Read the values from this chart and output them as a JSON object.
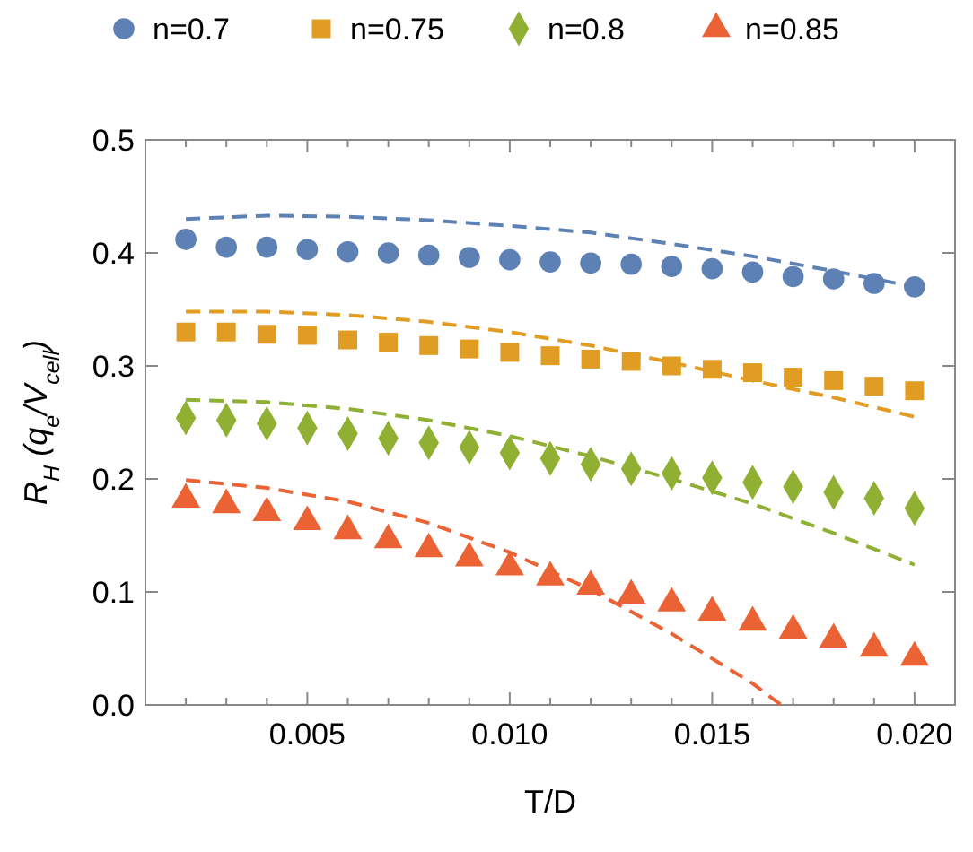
{
  "chart_data": {
    "type": "scatter",
    "xlabel": "T/D",
    "ylabel": "R$_{H}$ (q$_{e}$/V$_{cell}$)",
    "legend": "top",
    "grid": false,
    "xlim": [
      0.001,
      0.021
    ],
    "xticks": [
      {
        "value": 0.002,
        "label": null
      },
      {
        "value": 0.003,
        "label": null
      },
      {
        "value": 0.004,
        "label": null
      },
      {
        "value": 0.005,
        "label": "0.005"
      },
      {
        "value": 0.006,
        "label": null
      },
      {
        "value": 0.007,
        "label": null
      },
      {
        "value": 0.008,
        "label": null
      },
      {
        "value": 0.009,
        "label": null
      },
      {
        "value": 0.01,
        "label": "0.010"
      },
      {
        "value": 0.011,
        "label": null
      },
      {
        "value": 0.012,
        "label": null
      },
      {
        "value": 0.013,
        "label": null
      },
      {
        "value": 0.014,
        "label": null
      },
      {
        "value": 0.015,
        "label": "0.015"
      },
      {
        "value": 0.016,
        "label": null
      },
      {
        "value": 0.017,
        "label": null
      },
      {
        "value": 0.018,
        "label": null
      },
      {
        "value": 0.019,
        "label": null
      },
      {
        "value": 0.02,
        "label": "0.020"
      }
    ],
    "ylim": [
      0,
      0.5
    ],
    "yticks": [
      {
        "value": 0,
        "label": "0.0"
      },
      {
        "value": 0.1,
        "label": "0.1"
      },
      {
        "value": 0.2,
        "label": "0.2"
      },
      {
        "value": 0.3,
        "label": "0.3"
      },
      {
        "value": 0.4,
        "label": "0.4"
      },
      {
        "value": 0.5,
        "label": "0.5"
      }
    ],
    "x": [
      0.002,
      0.003,
      0.004,
      0.005,
      0.006,
      0.007,
      0.008,
      0.009,
      0.01,
      0.011,
      0.012,
      0.013,
      0.014,
      0.015,
      0.016,
      0.017,
      0.018,
      0.019,
      0.02
    ],
    "series": [
      {
        "name": "n=0.7",
        "color": "#5e81b5",
        "marker": "circle",
        "values": [
          0.412,
          0.405,
          0.405,
          0.403,
          0.401,
          0.4,
          0.398,
          0.396,
          0.394,
          0.392,
          0.391,
          0.39,
          0.388,
          0.386,
          0.383,
          0.379,
          0.377,
          0.373,
          0.37
        ]
      },
      {
        "name": "n=0.75",
        "color": "#e19c24",
        "marker": "square",
        "values": [
          0.33,
          0.33,
          0.328,
          0.327,
          0.323,
          0.321,
          0.318,
          0.315,
          0.312,
          0.309,
          0.306,
          0.304,
          0.3,
          0.297,
          0.294,
          0.29,
          0.287,
          0.282,
          0.278
        ]
      },
      {
        "name": "n=0.8",
        "color": "#8fb032",
        "marker": "diamond",
        "values": [
          0.254,
          0.252,
          0.249,
          0.245,
          0.24,
          0.236,
          0.232,
          0.228,
          0.223,
          0.218,
          0.213,
          0.209,
          0.205,
          0.201,
          0.197,
          0.193,
          0.188,
          0.183,
          0.174
        ]
      },
      {
        "name": "n=0.85",
        "color": "#eb6235",
        "marker": "triangle",
        "values": [
          0.182,
          0.177,
          0.17,
          0.162,
          0.154,
          0.146,
          0.138,
          0.13,
          0.122,
          0.113,
          0.105,
          0.097,
          0.09,
          0.082,
          0.073,
          0.066,
          0.058,
          0.05,
          0.042
        ]
      },
      {
        "type": "line",
        "line_style": "dashed",
        "marker": "none",
        "color": "#5e81b5",
        "x": [
          0.002,
          0.004,
          0.006,
          0.008,
          0.01,
          0.012,
          0.014,
          0.016,
          0.018,
          0.02
        ],
        "values": [
          0.43,
          0.433,
          0.432,
          0.429,
          0.424,
          0.418,
          0.408,
          0.397,
          0.384,
          0.37
        ]
      },
      {
        "type": "line",
        "line_style": "dashed",
        "marker": "none",
        "color": "#e19c24",
        "x": [
          0.002,
          0.004,
          0.006,
          0.008,
          0.01,
          0.012,
          0.014,
          0.016,
          0.018,
          0.02
        ],
        "values": [
          0.348,
          0.348,
          0.345,
          0.339,
          0.33,
          0.318,
          0.303,
          0.287,
          0.272,
          0.255
        ]
      },
      {
        "type": "line",
        "line_style": "dashed",
        "marker": "none",
        "color": "#8fb032",
        "x": [
          0.002,
          0.004,
          0.006,
          0.008,
          0.01,
          0.012,
          0.014,
          0.016,
          0.018,
          0.02
        ],
        "values": [
          0.27,
          0.268,
          0.262,
          0.252,
          0.238,
          0.22,
          0.2,
          0.178,
          0.152,
          0.124
        ]
      },
      {
        "type": "line",
        "line_style": "dashed",
        "marker": "none",
        "color": "#eb6235",
        "x": [
          0.002,
          0.004,
          0.006,
          0.008,
          0.01,
          0.012,
          0.014,
          0.016,
          0.0167
        ],
        "values": [
          0.199,
          0.192,
          0.18,
          0.161,
          0.135,
          0.102,
          0.063,
          0.019,
          0.0
        ]
      }
    ]
  }
}
